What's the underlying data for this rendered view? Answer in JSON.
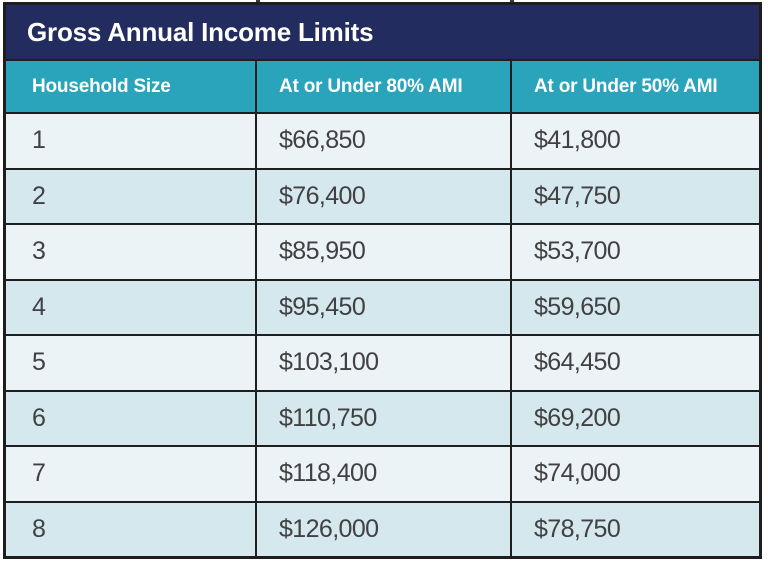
{
  "table": {
    "title": "Gross Annual Income Limits",
    "columns": [
      "Household Size",
      "At or Under 80% AMI",
      "At or Under 50% AMI"
    ],
    "rows": [
      [
        "1",
        "$66,850",
        "$41,800"
      ],
      [
        "2",
        "$76,400",
        "$47,750"
      ],
      [
        "3",
        "$85,950",
        "$53,700"
      ],
      [
        "4",
        "$95,450",
        "$59,650"
      ],
      [
        "5",
        "$103,100",
        "$64,450"
      ],
      [
        "6",
        "$110,750",
        "$69,200"
      ],
      [
        "7",
        "$118,400",
        "$74,000"
      ],
      [
        "8",
        "$126,000",
        "$78,750"
      ]
    ]
  },
  "colors": {
    "title_bar_bg": "#222c5e",
    "header_bar_bg": "#29a4bb",
    "row_light_bg": "#ebf3f6",
    "row_alt_bg": "#d4e8ee",
    "grid_border": "#1e1e1e",
    "cell_text": "#414042",
    "header_text": "#ffffff"
  },
  "chart_data": {
    "type": "table",
    "title": "Gross Annual Income Limits",
    "categories": [
      "1",
      "2",
      "3",
      "4",
      "5",
      "6",
      "7",
      "8"
    ],
    "category_label": "Household Size",
    "series": [
      {
        "name": "At or Under 80% AMI",
        "values": [
          66850,
          76400,
          85950,
          95450,
          103100,
          110750,
          118400,
          126000
        ]
      },
      {
        "name": "At or Under 50% AMI",
        "values": [
          41800,
          47750,
          53700,
          59650,
          64450,
          69200,
          74000,
          78750
        ]
      }
    ]
  }
}
